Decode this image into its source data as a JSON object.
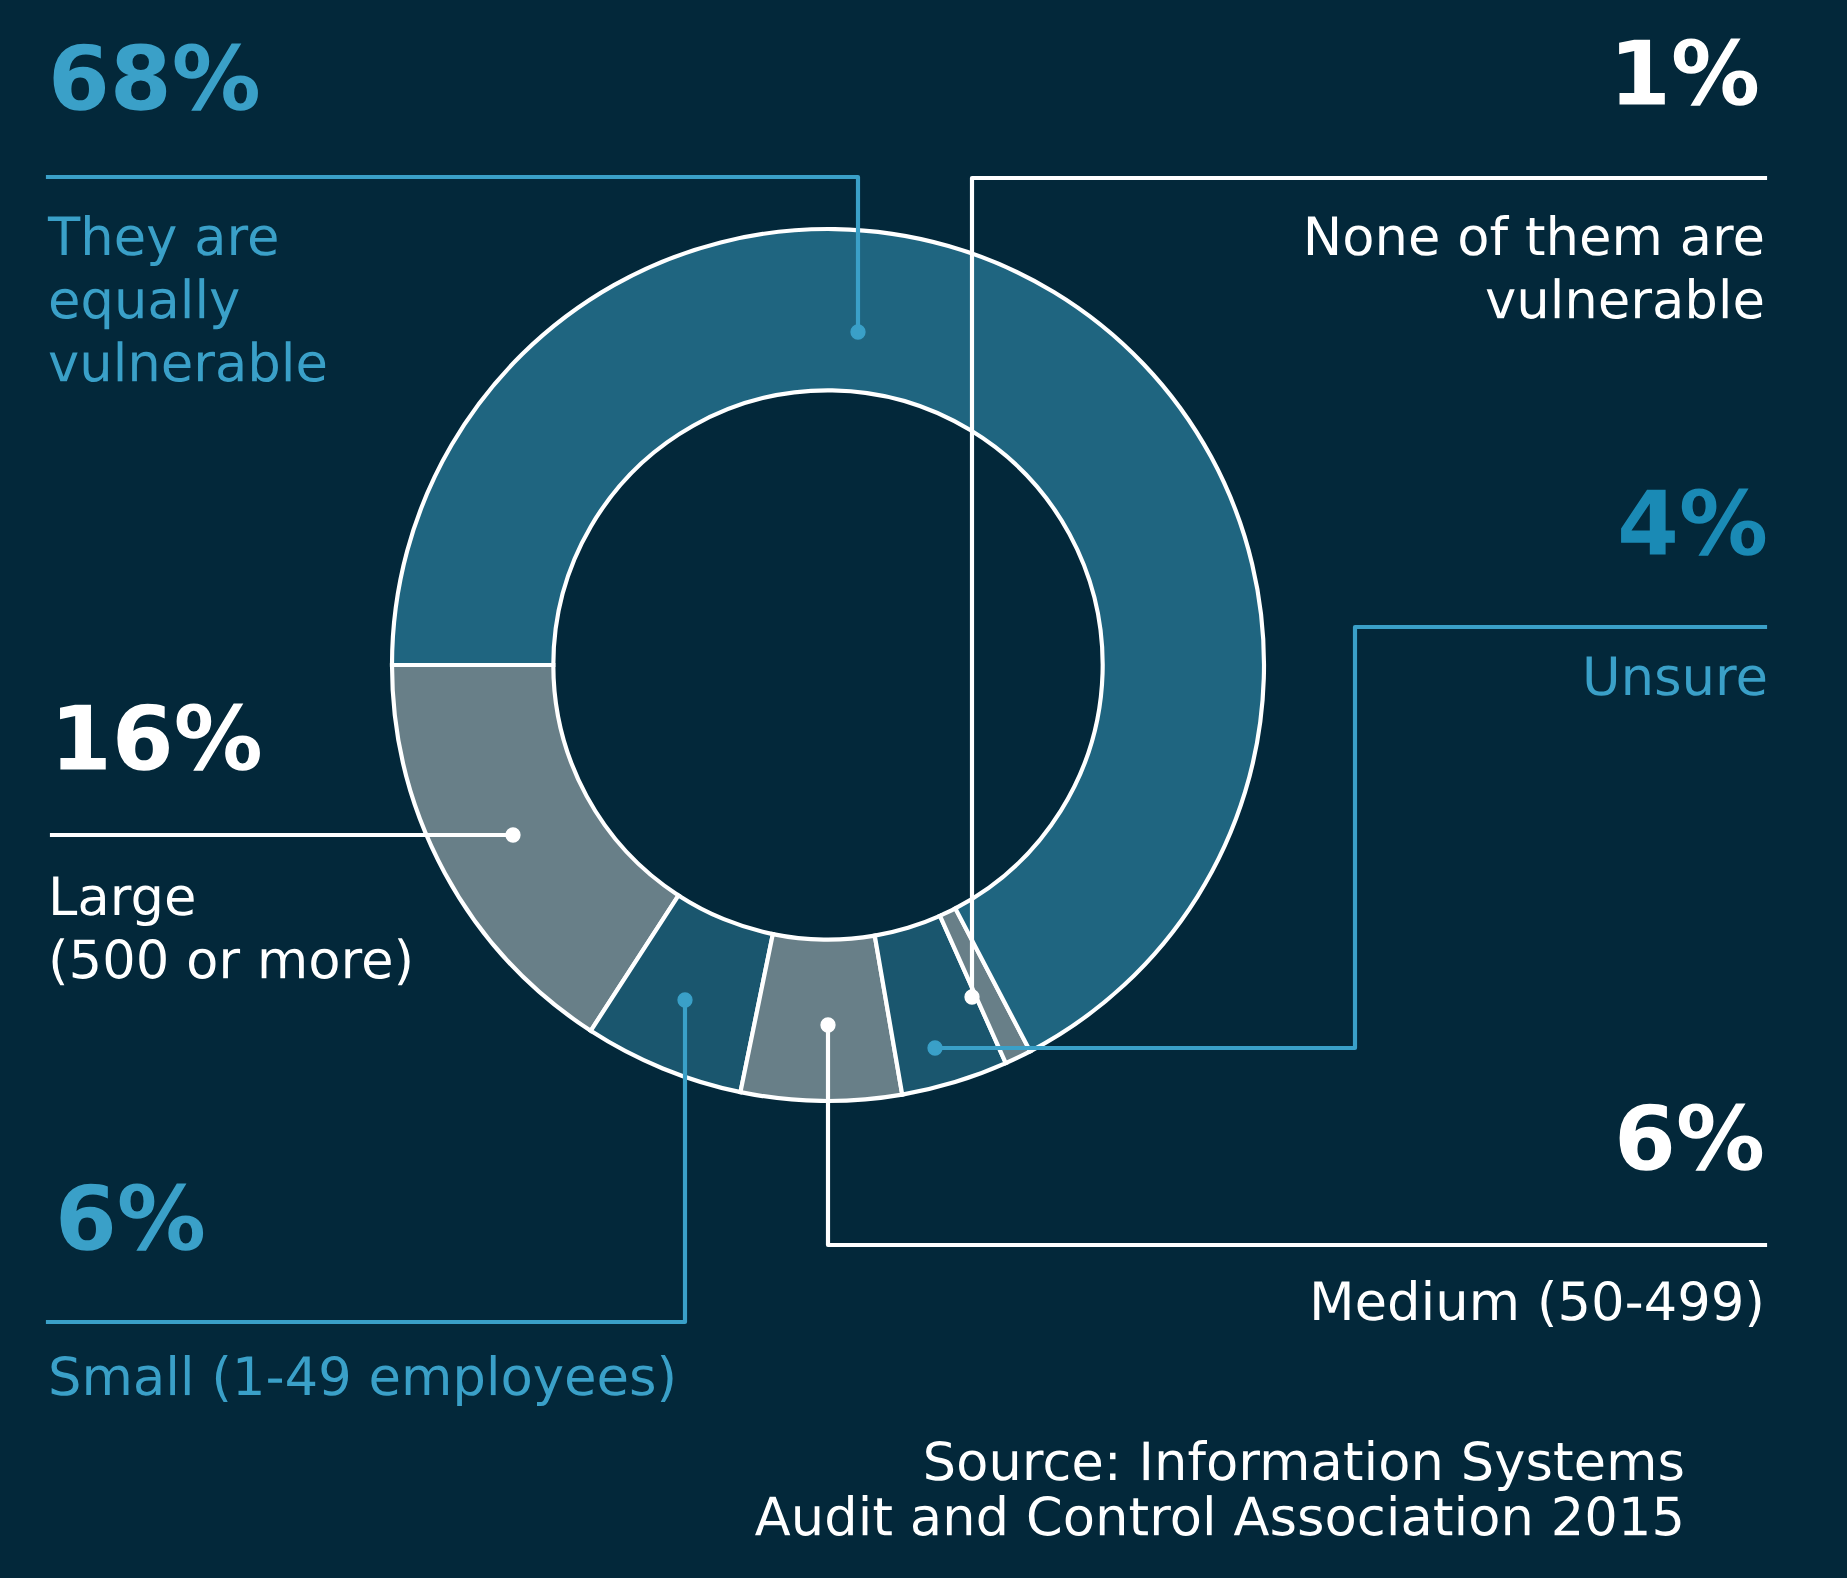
{
  "chart_data": {
    "type": "donut",
    "categories": [
      "Large\n(500 or more)",
      "Small (1-49 employees)",
      "Medium (50-499)",
      "Unsure",
      "None of them are\nvulnerable",
      "They are\nequally\nvulnerable"
    ],
    "values": [
      16,
      6,
      6,
      4,
      1,
      68
    ],
    "value_labels": [
      "16%",
      "6%",
      "6%",
      "4%",
      "1%",
      "68%"
    ],
    "colors": [
      "#687f88",
      "#1a566e",
      "#687f88",
      "#1a566e",
      "#687f88",
      "#1f6580"
    ],
    "annotations": [
      "Source: Information Systems\nAudit and Control Association 2015"
    ]
  }
}
